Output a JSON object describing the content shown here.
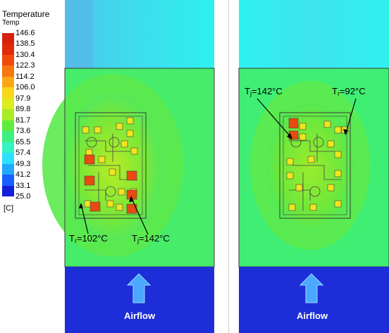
{
  "legend": {
    "title": "Temperature",
    "subtitle": "Temp",
    "unit": "[C]",
    "ticks": [
      "146.6",
      "138.5",
      "130.4",
      "122.3",
      "114.2",
      "106.0",
      "97.9",
      "89.8",
      "81.7",
      "73.6",
      "65.5",
      "57.4",
      "49.3",
      "41.2",
      "33.1",
      "25.0"
    ],
    "colors": [
      "#1420d8",
      "#1860ff",
      "#22a8ff",
      "#2ee0ff",
      "#34f4c0",
      "#3ef080",
      "#60ec3c",
      "#a8ec24",
      "#dcec1c",
      "#f8d818",
      "#fca814",
      "#f87810",
      "#f04a0c",
      "#e02a0a",
      "#d8200e"
    ]
  },
  "left": {
    "tr_label": "T",
    "tr_sub": "r",
    "tr_value": "=102°C",
    "tj_label": "T",
    "tj_sub": "j",
    "tj_value": "=142°C",
    "airflow": "Airflow"
  },
  "right": {
    "tj_label": "T",
    "tj_sub": "j",
    "tj_value": "=142°C",
    "tr_label": "T",
    "tr_sub": "r",
    "tr_value": "=92°C",
    "airflow": "Airflow"
  }
}
